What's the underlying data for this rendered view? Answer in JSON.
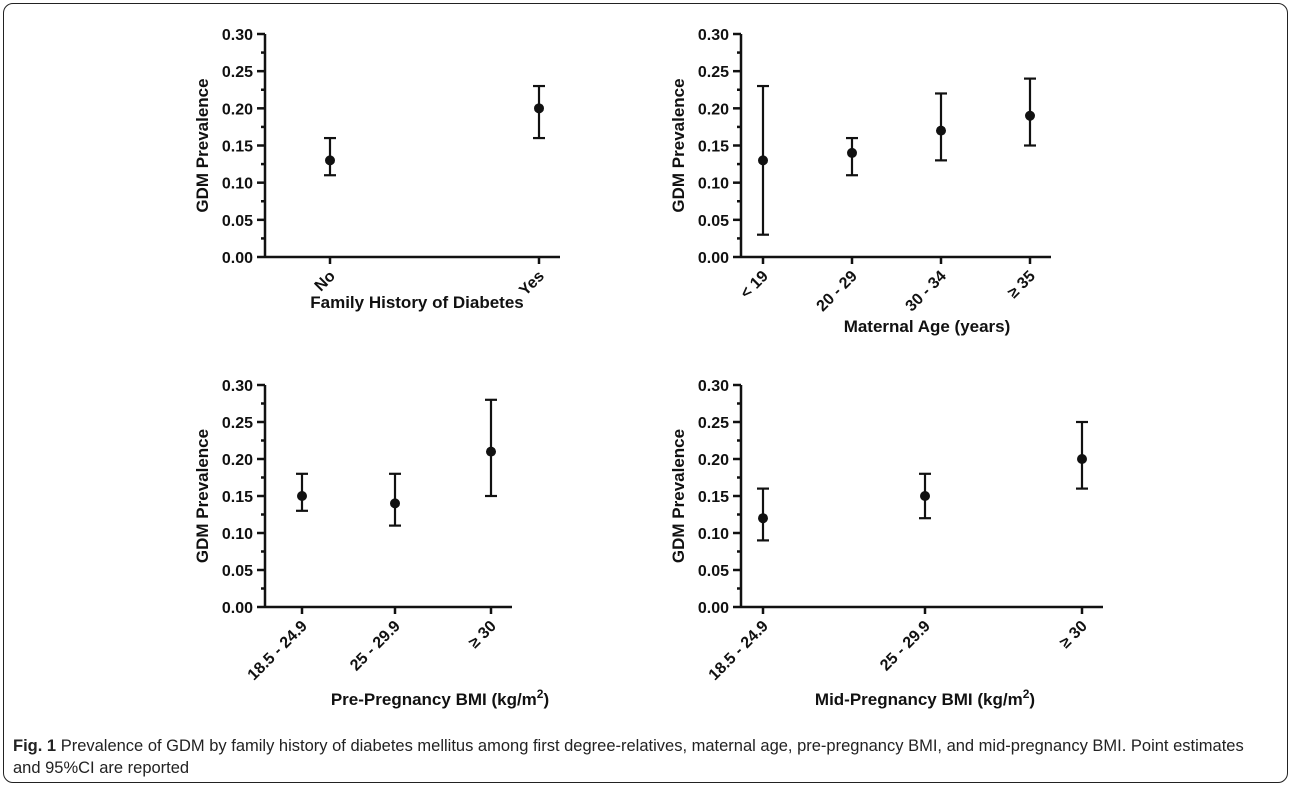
{
  "caption": {
    "label": "Fig. 1",
    "text": "Prevalence of GDM by family history of diabetes mellitus among first degree-relatives, maternal age, pre-pregnancy BMI, and mid-pregnancy BMI. Point estimates and 95%CI are reported"
  },
  "chart_data": [
    {
      "type": "scatter",
      "error_bars": true,
      "xlabel": "Family History of Diabetes",
      "ylabel": "GDM Prevalence",
      "ylim": [
        0,
        0.3
      ],
      "yticks": [
        "0.00",
        "0.05",
        "0.10",
        "0.15",
        "0.20",
        "0.25",
        "0.30"
      ],
      "categories": [
        "No",
        "Yes"
      ],
      "values": [
        0.13,
        0.2
      ],
      "lower": [
        0.11,
        0.16
      ],
      "upper": [
        0.16,
        0.23
      ]
    },
    {
      "type": "scatter",
      "error_bars": true,
      "xlabel": "Maternal Age (years)",
      "ylabel": "GDM Prevalence",
      "ylim": [
        0,
        0.3
      ],
      "yticks": [
        "0.00",
        "0.05",
        "0.10",
        "0.15",
        "0.20",
        "0.25",
        "0.30"
      ],
      "categories": [
        "< 19",
        "20 - 29",
        "30 - 34",
        "≥ 35"
      ],
      "values": [
        0.13,
        0.14,
        0.17,
        0.19
      ],
      "lower": [
        0.03,
        0.11,
        0.13,
        0.15
      ],
      "upper": [
        0.23,
        0.16,
        0.22,
        0.24
      ]
    },
    {
      "type": "scatter",
      "error_bars": true,
      "xlabel": "Pre-Pregnancy BMI (kg/m",
      "xlabel_sup": "2",
      "xlabel_end": ")",
      "ylabel": "GDM Prevalence",
      "ylim": [
        0,
        0.3
      ],
      "yticks": [
        "0.00",
        "0.05",
        "0.10",
        "0.15",
        "0.20",
        "0.25",
        "0.30"
      ],
      "categories": [
        "18.5 - 24.9",
        "25 - 29.9",
        "≥ 30"
      ],
      "values": [
        0.15,
        0.14,
        0.21
      ],
      "lower": [
        0.13,
        0.11,
        0.15
      ],
      "upper": [
        0.18,
        0.18,
        0.28
      ]
    },
    {
      "type": "scatter",
      "error_bars": true,
      "xlabel": "Mid-Pregnancy BMI (kg/m",
      "xlabel_sup": "2",
      "xlabel_end": ")",
      "ylabel": "GDM Prevalence",
      "ylim": [
        0,
        0.3
      ],
      "yticks": [
        "0.00",
        "0.05",
        "0.10",
        "0.15",
        "0.20",
        "0.25",
        "0.30"
      ],
      "categories": [
        "18.5 - 24.9",
        "25 - 29.9",
        "≥ 30"
      ],
      "values": [
        0.12,
        0.15,
        0.2
      ],
      "lower": [
        0.09,
        0.12,
        0.16
      ],
      "upper": [
        0.16,
        0.18,
        0.25
      ]
    }
  ]
}
